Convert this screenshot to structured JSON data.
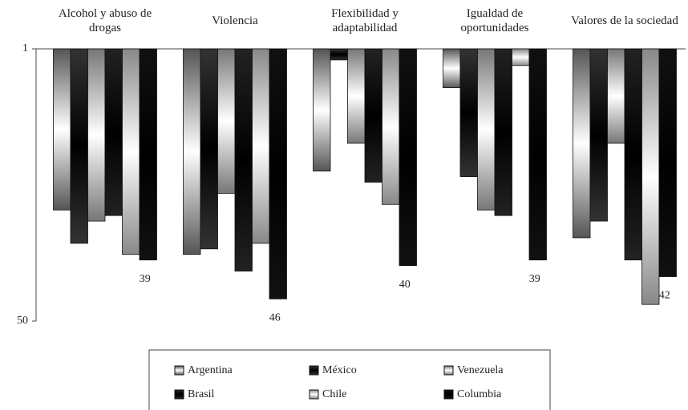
{
  "chart_data": {
    "type": "bar",
    "categories": [
      "Alcohol y abuso de drogas",
      "Violencia",
      "Flexibilidad y adaptabilidad",
      "Igualdad de oportunidades",
      "Valores de la sociedad"
    ],
    "series": [
      {
        "name": "Argentina",
        "color": "#555555",
        "values": [
          30,
          38,
          23,
          8,
          35
        ]
      },
      {
        "name": "México",
        "color": "#333333",
        "values": [
          36,
          37,
          3,
          24,
          32
        ]
      },
      {
        "name": "Venezuela",
        "color": "#777777",
        "values": [
          32,
          27,
          18,
          30,
          18
        ]
      },
      {
        "name": "Brasil",
        "color": "#222222",
        "values": [
          31,
          41,
          25,
          31,
          39
        ]
      },
      {
        "name": "Chile",
        "color": "#888888",
        "values": [
          38,
          36,
          29,
          4,
          47
        ]
      },
      {
        "name": "Columbia",
        "color": "#111111",
        "values": [
          39,
          46,
          40,
          39,
          42
        ]
      }
    ],
    "ylim": [
      1,
      50
    ],
    "yticks": [
      1,
      50
    ],
    "y_inverted": true,
    "data_labels_series": 5
  }
}
